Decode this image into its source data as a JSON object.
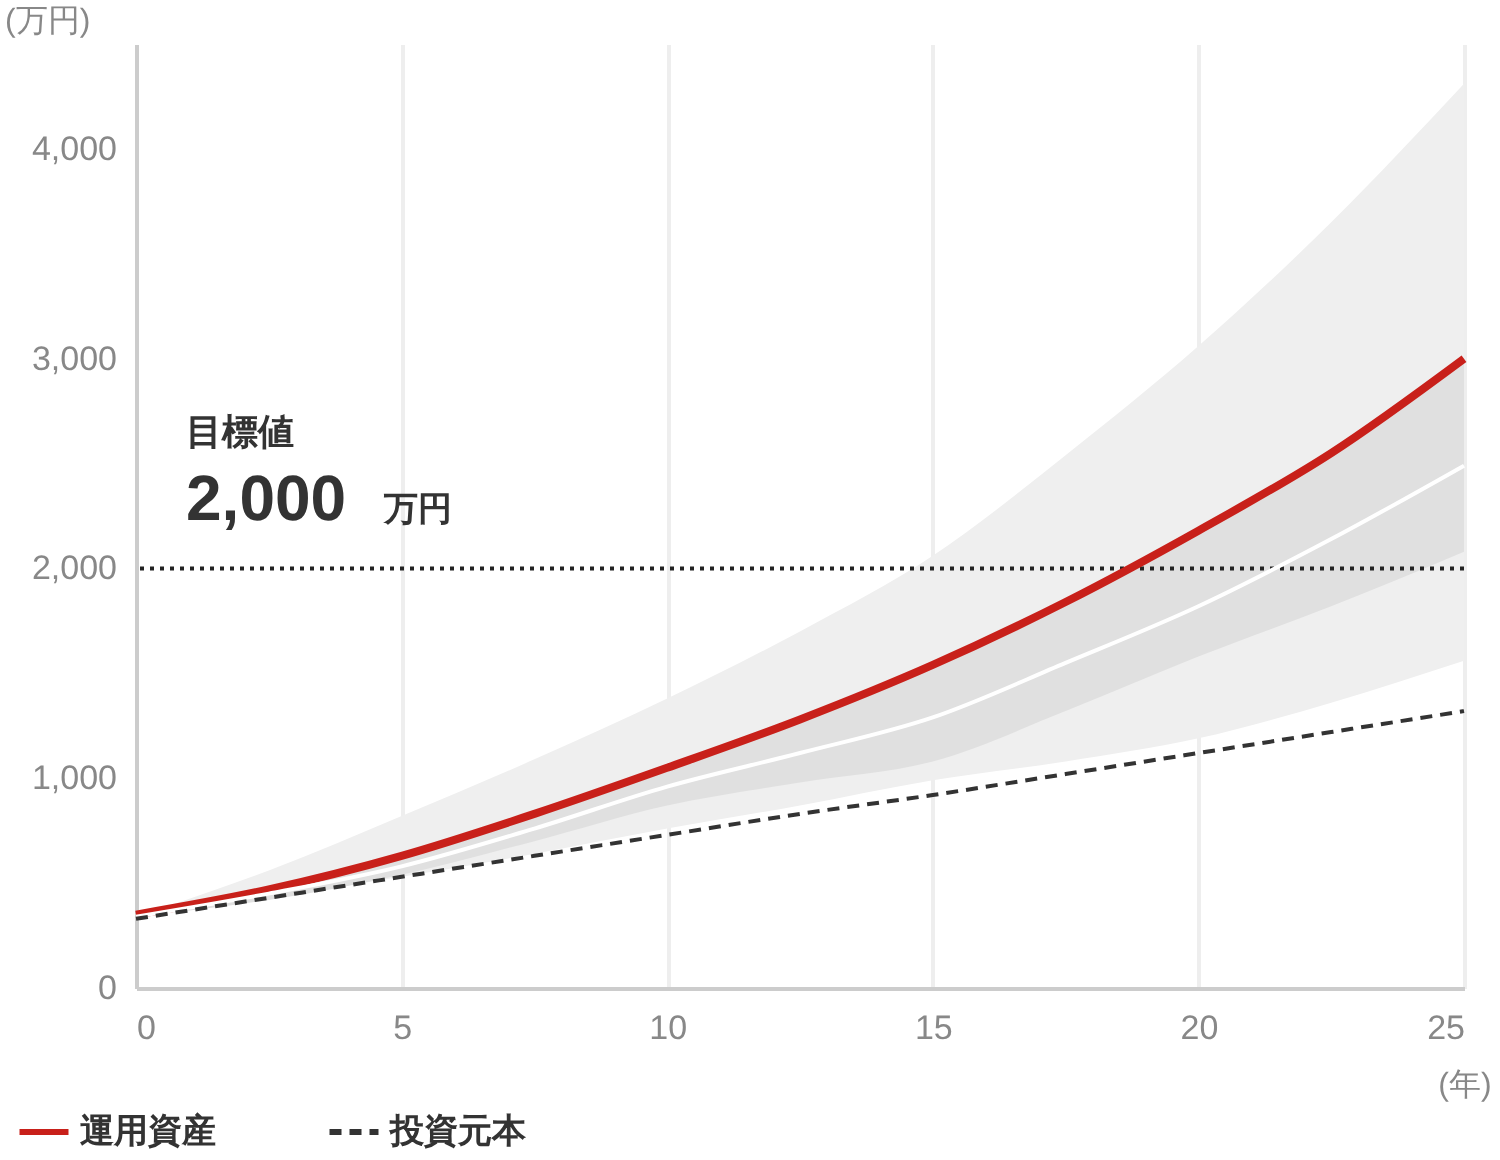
{
  "chart_data": {
    "type": "line",
    "xlabel": "(年)",
    "ylabel": "(万円)",
    "xlim": [
      0,
      25
    ],
    "xticks": [
      0,
      5,
      10,
      15,
      20,
      25
    ],
    "ylim": [
      0,
      4500
    ],
    "yticks": [
      0,
      {
        "value": 1000,
        "label": "1,000"
      },
      {
        "value": 2000,
        "label": "2,000"
      },
      {
        "value": 3000,
        "label": "3,000"
      },
      {
        "value": 4000,
        "label": "4,000"
      }
    ],
    "grid": "x",
    "legend": "bottom left",
    "marker": "none",
    "x": [
      0,
      2.5,
      5,
      7.5,
      10,
      12.5,
      15,
      17.5,
      20,
      22.5,
      25
    ],
    "series": [
      {
        "name": "運用資産",
        "color": "#c8201a",
        "line_style": "solid",
        "values": [
          350,
          470,
          630,
          830,
          1050,
          1280,
          1540,
          1840,
          2180,
          2550,
          3000
        ],
        "lower": [
          340,
          420,
          540,
          700,
          870,
          980,
          1080,
          1320,
          1580,
          1820,
          2080
        ],
        "upper": [
          350,
          470,
          630,
          830,
          1050,
          1280,
          1540,
          1840,
          2180,
          2550,
          3000
        ]
      },
      {
        "color": "#ffffff",
        "line_style": "solid",
        "values": [
          340,
          450,
          580,
          760,
          960,
          1120,
          1290,
          1550,
          1820,
          2140,
          2490
        ],
        "lower": [
          340,
          430,
          530,
          640,
          760,
          870,
          990,
          1080,
          1190,
          1360,
          1560
        ],
        "upper": [
          340,
          560,
          820,
          1090,
          1380,
          1700,
          2060,
          2540,
          3060,
          3650,
          4310
        ]
      },
      {
        "name": "投資元本",
        "color": "#333333",
        "line_style": "dashed",
        "values": [
          330,
          430,
          530,
          630,
          730,
          830,
          920,
          1020,
          1120,
          1220,
          1320
        ]
      }
    ],
    "ref_lines": [
      {
        "axis": "y",
        "value": 2000,
        "label": "2,000 万円",
        "color": "#222222",
        "line_style": "dotted"
      }
    ],
    "annotations": [
      "目標値"
    ]
  }
}
